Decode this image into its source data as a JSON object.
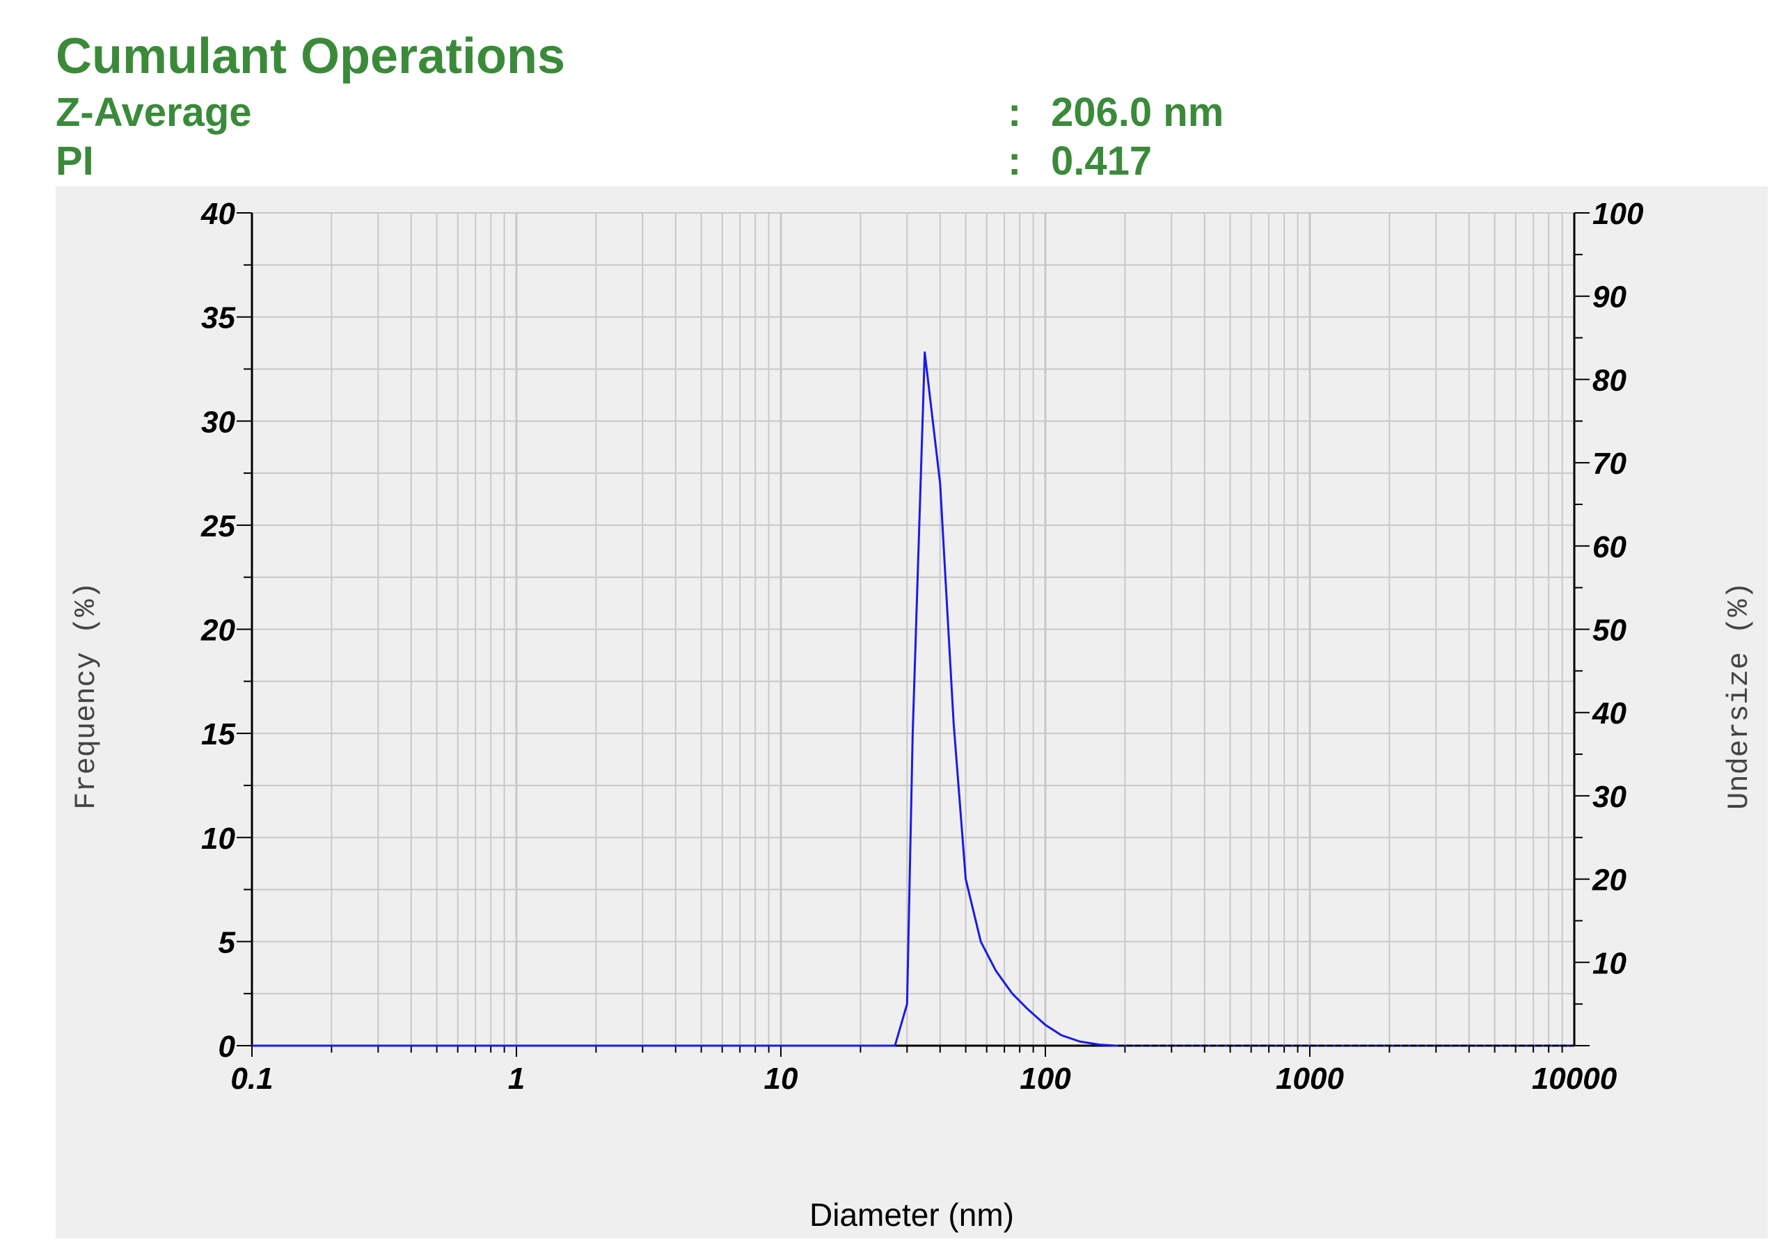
{
  "header": {
    "title": "Cumulant Operations",
    "rows": [
      {
        "label": "Z-Average",
        "colon": ":",
        "value": "206.0",
        "unit": "nm"
      },
      {
        "label": "PI",
        "colon": ":",
        "value": "0.417",
        "unit": ""
      }
    ]
  },
  "colors": {
    "header_green": "#3a8a3a",
    "plot_background": "#efefef",
    "grid": "#c8c8c8",
    "series": "#1a1ae6"
  },
  "chart_data": {
    "type": "line",
    "title": "",
    "xlabel": "Diameter (nm)",
    "ylabel_left": "Frequency (%)",
    "ylabel_right": "Undersize (%)",
    "x_scale": "log",
    "xlim": [
      0.1,
      10000
    ],
    "x_tick_labels": [
      "0.1",
      "1",
      "10",
      "100",
      "1000",
      "10000"
    ],
    "x_tick_values": [
      0.1,
      1,
      10,
      100,
      1000,
      10000
    ],
    "ylim_left": [
      0,
      40
    ],
    "y_left_tick_labels": [
      "0",
      "5",
      "10",
      "15",
      "20",
      "25",
      "30",
      "35",
      "40"
    ],
    "y_left_tick_values": [
      0,
      5,
      10,
      15,
      20,
      25,
      30,
      35,
      40
    ],
    "ylim_right": [
      0,
      100
    ],
    "y_right_tick_labels": [
      "10",
      "20",
      "30",
      "40",
      "50",
      "60",
      "70",
      "80",
      "90",
      "100"
    ],
    "y_right_tick_values": [
      10,
      20,
      30,
      40,
      50,
      60,
      70,
      80,
      90,
      100
    ],
    "grid": true,
    "series": [
      {
        "name": "",
        "x": [
          0.1,
          0.3,
          27,
          30,
          31.5,
          35,
          40,
          45,
          50,
          57,
          65,
          75,
          85,
          100,
          115,
          135,
          160,
          185
        ],
        "y": [
          0,
          0,
          0,
          2,
          15,
          33.3,
          27,
          15.5,
          8,
          5,
          3.6,
          2.5,
          1.8,
          1,
          0.5,
          0.2,
          0.05,
          0
        ]
      },
      {
        "name": "",
        "style": "dotted",
        "x": [
          0.3,
          27
        ],
        "y": [
          0,
          0
        ]
      },
      {
        "name": "",
        "style": "dotted",
        "x": [
          185,
          10000
        ],
        "y": [
          0,
          0
        ]
      }
    ]
  }
}
